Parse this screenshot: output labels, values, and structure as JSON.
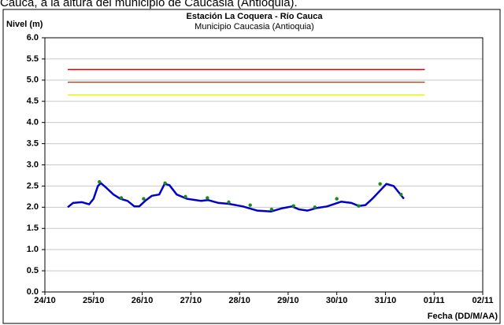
{
  "caption": "Cauca, a la altura del municipio de Caucasia (Antioquia).",
  "chart_data": {
    "type": "line",
    "title": "Estación La Coquera - Río Cauca",
    "subtitle": "Municipio Caucasia (Antioquia)",
    "y_label": "Nivel (m)",
    "x_label": "Fecha (DD/M/AA)",
    "xlim": [
      0,
      8
    ],
    "xticks": [
      {
        "value": 0,
        "label": "24/10"
      },
      {
        "value": 1,
        "label": "25/10"
      },
      {
        "value": 2,
        "label": "26/10"
      },
      {
        "value": 3,
        "label": "27/10"
      },
      {
        "value": 4,
        "label": "28/10"
      },
      {
        "value": 5,
        "label": "29/10"
      },
      {
        "value": 6,
        "label": "30/10"
      },
      {
        "value": 7,
        "label": "31/10"
      },
      {
        "value": 8,
        "label": "01/11"
      },
      {
        "value": 9,
        "label": "02/11"
      }
    ],
    "ylim": [
      0,
      6
    ],
    "yticks": [
      {
        "value": 0,
        "label": "0.0"
      },
      0.5,
      {
        "value": 1,
        "label": "1.0"
      },
      1.5,
      {
        "value": 2,
        "label": "2.0"
      },
      2.5,
      {
        "value": 3,
        "label": "3.0"
      },
      3.5,
      {
        "value": 4,
        "label": "4.0"
      },
      4.5,
      {
        "value": 5,
        "label": "5.0"
      },
      5.5,
      {
        "value": 6,
        "label": "6.0"
      }
    ],
    "grid": true,
    "thresholds": [
      {
        "value": 5.25,
        "color": "#e00000",
        "x": [
          0.47,
          7.81
        ]
      },
      {
        "value": 4.95,
        "color": "#a0522d",
        "x": [
          0.47,
          7.81
        ]
      },
      {
        "value": 4.65,
        "color": "#f0f000",
        "x": [
          0.47,
          7.81
        ]
      }
    ],
    "series": [
      {
        "mode": "line",
        "color": "#0000cc",
        "x": [
          0.47,
          0.58,
          0.76,
          0.91,
          1.0,
          1.09,
          1.15,
          1.27,
          1.41,
          1.55,
          1.7,
          1.84,
          1.94,
          2.06,
          2.2,
          2.35,
          2.46,
          2.56,
          2.71,
          2.92,
          3.21,
          3.35,
          3.57,
          3.78,
          4.07,
          4.36,
          4.65,
          4.86,
          5.08,
          5.22,
          5.4,
          5.58,
          5.8,
          6.09,
          6.3,
          6.45,
          6.59,
          6.73,
          7.02,
          7.17,
          7.38
        ],
        "values": [
          2.0,
          2.1,
          2.12,
          2.07,
          2.2,
          2.5,
          2.57,
          2.45,
          2.3,
          2.2,
          2.15,
          2.02,
          2.02,
          2.15,
          2.27,
          2.3,
          2.55,
          2.52,
          2.3,
          2.2,
          2.15,
          2.17,
          2.1,
          2.08,
          2.02,
          1.92,
          1.9,
          1.97,
          2.02,
          1.95,
          1.92,
          1.98,
          2.02,
          2.13,
          2.1,
          2.03,
          2.05,
          2.2,
          2.55,
          2.5,
          2.2
        ]
      },
      {
        "mode": "markers",
        "color": "#1a8a1a",
        "x": [
          1.12,
          1.57,
          2.03,
          2.47,
          2.89,
          3.34,
          3.78,
          4.22,
          4.66,
          5.11,
          5.55,
          6.0,
          6.45,
          6.89,
          7.32
        ],
        "values": [
          2.6,
          2.22,
          2.2,
          2.57,
          2.25,
          2.22,
          2.12,
          2.05,
          1.95,
          2.03,
          2.0,
          2.2,
          2.03,
          2.55,
          2.3
        ]
      }
    ]
  }
}
